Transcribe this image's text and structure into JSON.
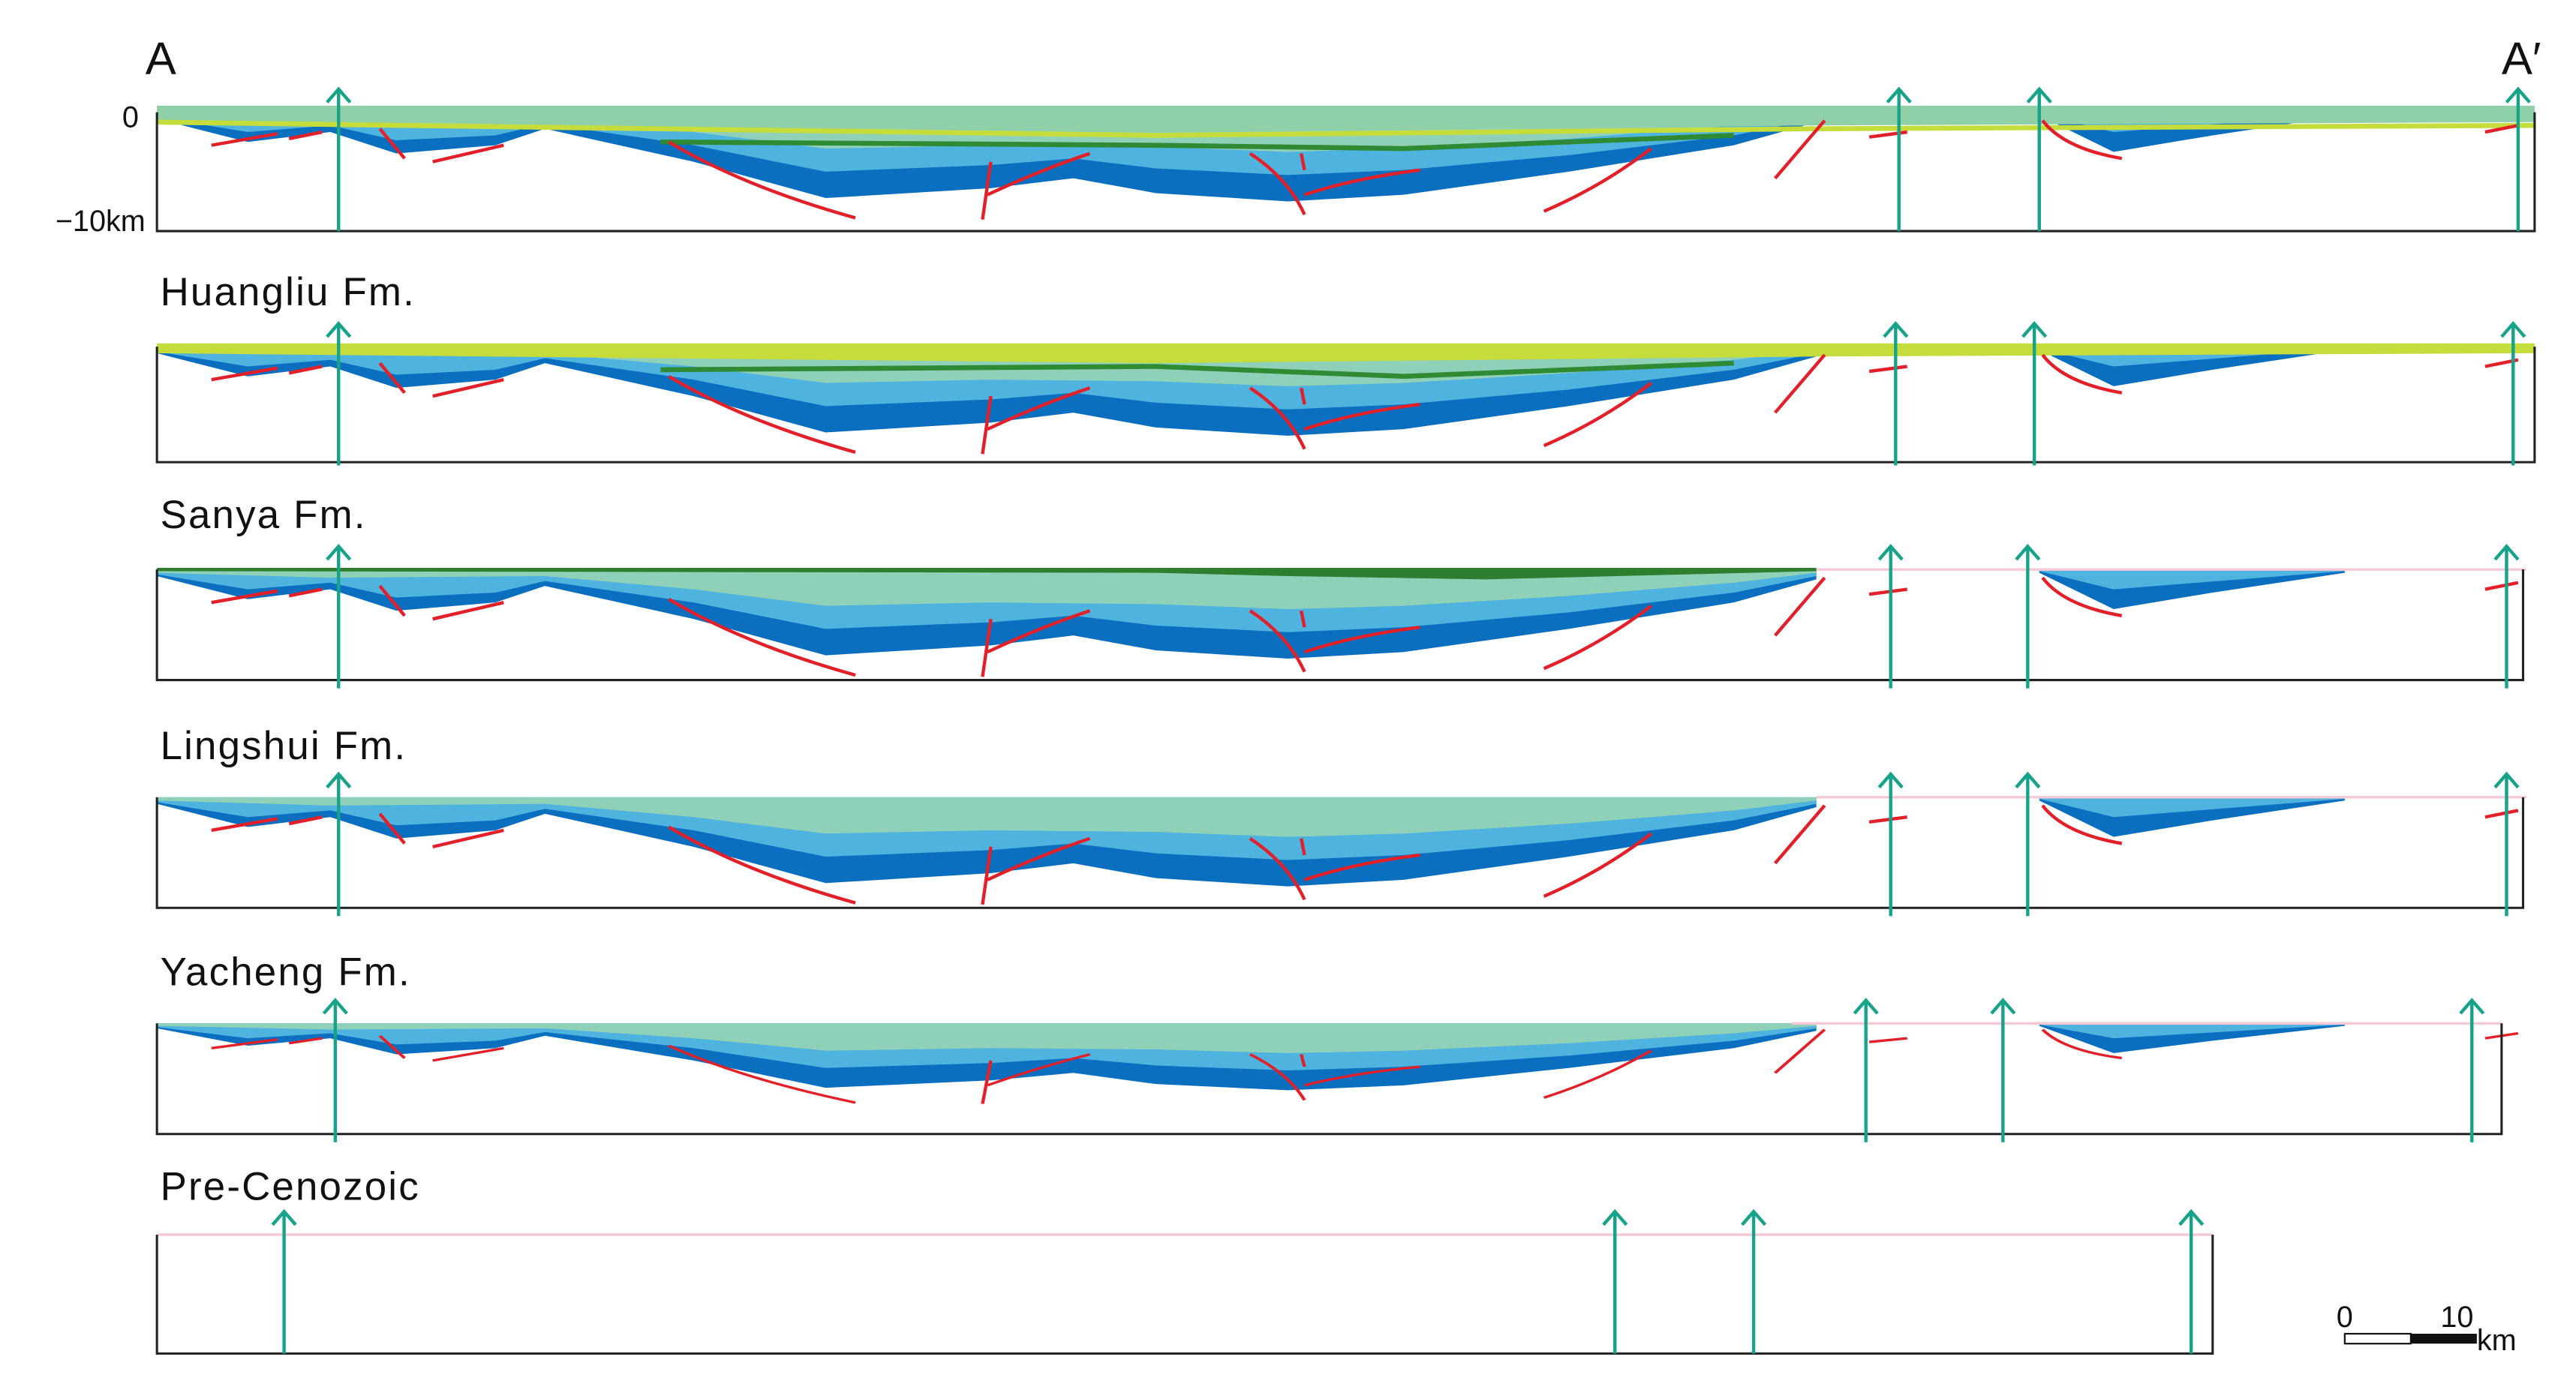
{
  "labels": {
    "start": "A",
    "end": "A′",
    "depth_top": "0",
    "depth_bottom": "−10km"
  },
  "panels": [
    {
      "title": "Huangliu Fm."
    },
    {
      "title": "Sanya Fm."
    },
    {
      "title": "Lingshui Fm."
    },
    {
      "title": "Yacheng Fm."
    },
    {
      "title": "Pre-Cenozoic"
    }
  ],
  "scale_bar": {
    "start": "0",
    "end": "10",
    "unit": "km"
  }
}
